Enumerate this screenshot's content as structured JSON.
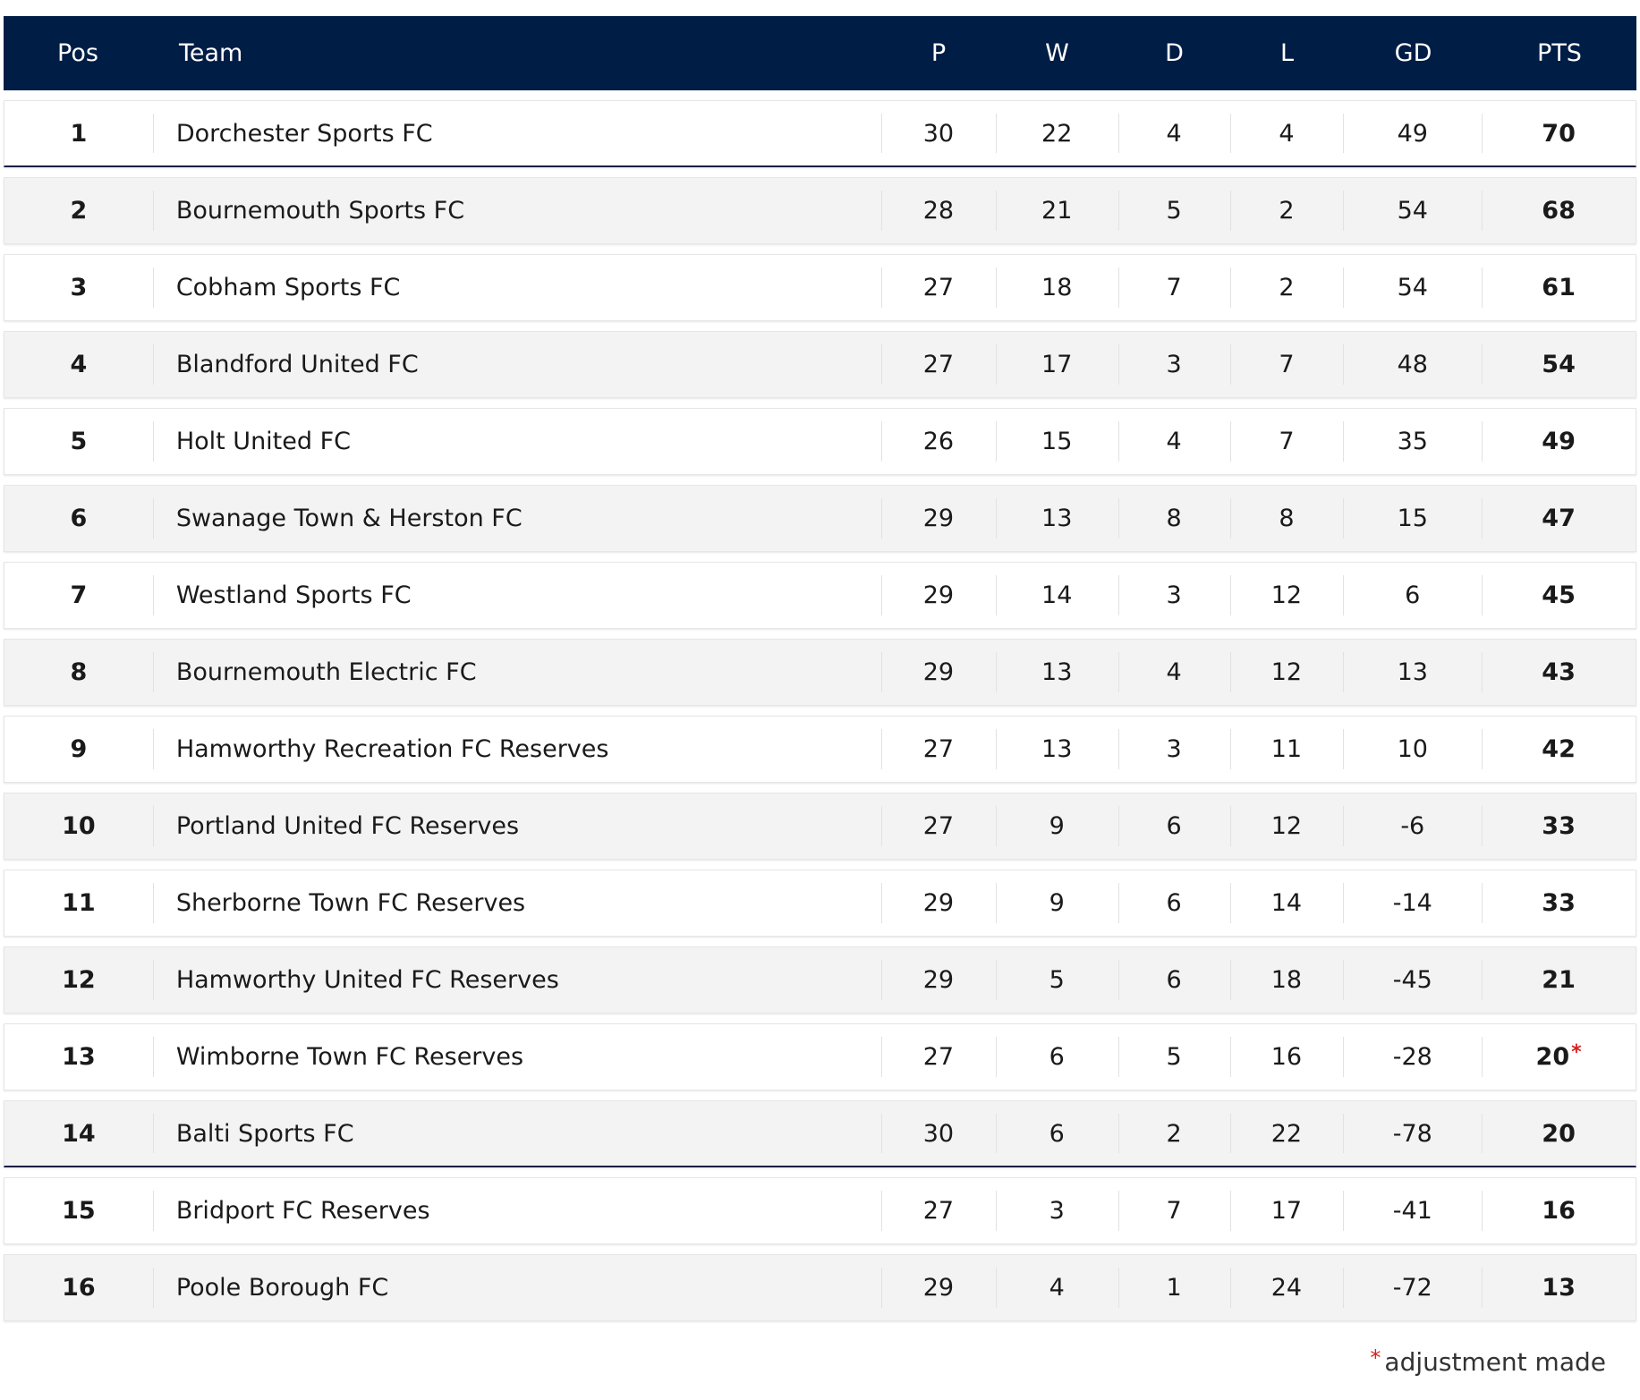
{
  "header": {
    "pos": "Pos",
    "team": "Team",
    "p": "P",
    "w": "W",
    "d": "D",
    "l": "L",
    "gd": "GD",
    "pts": "PTS"
  },
  "rows": [
    {
      "pos": "1",
      "team": "Dorchester Sports FC",
      "p": "30",
      "w": "22",
      "d": "4",
      "l": "4",
      "gd": "49",
      "pts": "70",
      "adjusted": false
    },
    {
      "pos": "2",
      "team": "Bournemouth Sports FC",
      "p": "28",
      "w": "21",
      "d": "5",
      "l": "2",
      "gd": "54",
      "pts": "68",
      "adjusted": false
    },
    {
      "pos": "3",
      "team": "Cobham Sports FC",
      "p": "27",
      "w": "18",
      "d": "7",
      "l": "2",
      "gd": "54",
      "pts": "61",
      "adjusted": false
    },
    {
      "pos": "4",
      "team": "Blandford United FC",
      "p": "27",
      "w": "17",
      "d": "3",
      "l": "7",
      "gd": "48",
      "pts": "54",
      "adjusted": false
    },
    {
      "pos": "5",
      "team": "Holt United FC",
      "p": "26",
      "w": "15",
      "d": "4",
      "l": "7",
      "gd": "35",
      "pts": "49",
      "adjusted": false
    },
    {
      "pos": "6",
      "team": "Swanage Town & Herston FC",
      "p": "29",
      "w": "13",
      "d": "8",
      "l": "8",
      "gd": "15",
      "pts": "47",
      "adjusted": false
    },
    {
      "pos": "7",
      "team": "Westland Sports FC",
      "p": "29",
      "w": "14",
      "d": "3",
      "l": "12",
      "gd": "6",
      "pts": "45",
      "adjusted": false
    },
    {
      "pos": "8",
      "team": "Bournemouth Electric FC",
      "p": "29",
      "w": "13",
      "d": "4",
      "l": "12",
      "gd": "13",
      "pts": "43",
      "adjusted": false
    },
    {
      "pos": "9",
      "team": "Hamworthy Recreation FC Reserves",
      "p": "27",
      "w": "13",
      "d": "3",
      "l": "11",
      "gd": "10",
      "pts": "42",
      "adjusted": false
    },
    {
      "pos": "10",
      "team": "Portland United FC Reserves",
      "p": "27",
      "w": "9",
      "d": "6",
      "l": "12",
      "gd": "-6",
      "pts": "33",
      "adjusted": false
    },
    {
      "pos": "11",
      "team": "Sherborne Town FC Reserves",
      "p": "29",
      "w": "9",
      "d": "6",
      "l": "14",
      "gd": "-14",
      "pts": "33",
      "adjusted": false
    },
    {
      "pos": "12",
      "team": "Hamworthy United FC Reserves",
      "p": "29",
      "w": "5",
      "d": "6",
      "l": "18",
      "gd": "-45",
      "pts": "21",
      "adjusted": false
    },
    {
      "pos": "13",
      "team": "Wimborne Town FC Reserves",
      "p": "27",
      "w": "6",
      "d": "5",
      "l": "16",
      "gd": "-28",
      "pts": "20",
      "adjusted": true
    },
    {
      "pos": "14",
      "team": "Balti Sports FC",
      "p": "30",
      "w": "6",
      "d": "2",
      "l": "22",
      "gd": "-78",
      "pts": "20",
      "adjusted": false
    },
    {
      "pos": "15",
      "team": "Bridport FC Reserves",
      "p": "27",
      "w": "3",
      "d": "7",
      "l": "17",
      "gd": "-41",
      "pts": "16",
      "adjusted": false
    },
    {
      "pos": "16",
      "team": "Poole Borough FC",
      "p": "29",
      "w": "4",
      "d": "1",
      "l": "24",
      "gd": "-72",
      "pts": "13",
      "adjusted": false
    }
  ],
  "separator_after_positions": [
    1,
    14
  ],
  "adjustment_marker": "*",
  "footnote": {
    "marker": "*",
    "text": "adjustment made"
  },
  "colors": {
    "header_bg": "#001d45",
    "header_text": "#ffffff",
    "row_alt_bg": "#f3f3f3",
    "asterisk": "#d81e1e"
  }
}
